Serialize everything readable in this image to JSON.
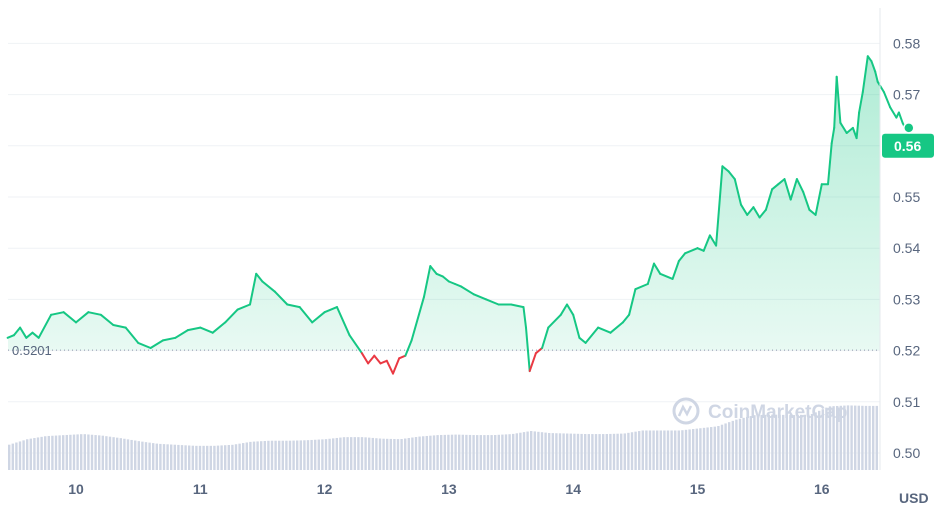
{
  "chart_data": {
    "type": "line",
    "currency": "USD",
    "reference_value": 0.5201,
    "reference_label": "0.5201",
    "current_value": 0.56,
    "current_label": "0.56",
    "ylim": [
      0.497,
      0.587
    ],
    "xlim": [
      9.45,
      16.45
    ],
    "y_ticks": [
      {
        "value": 0.58,
        "label": "0.58"
      },
      {
        "value": 0.57,
        "label": "0.57"
      },
      {
        "value": 0.56,
        "label": "0.56"
      },
      {
        "value": 0.55,
        "label": "0.55"
      },
      {
        "value": 0.54,
        "label": "0.54"
      },
      {
        "value": 0.53,
        "label": "0.53"
      },
      {
        "value": 0.52,
        "label": "0.52"
      },
      {
        "value": 0.51,
        "label": "0.51"
      },
      {
        "value": 0.5,
        "label": "0.50"
      }
    ],
    "x_ticks": [
      {
        "value": 10,
        "label": "10"
      },
      {
        "value": 11,
        "label": "11"
      },
      {
        "value": 12,
        "label": "12"
      },
      {
        "value": 13,
        "label": "13"
      },
      {
        "value": 14,
        "label": "14"
      },
      {
        "value": 15,
        "label": "15"
      },
      {
        "value": 16,
        "label": "16"
      }
    ],
    "price": [
      [
        9.45,
        0.5225
      ],
      [
        9.5,
        0.523
      ],
      [
        9.55,
        0.5245
      ],
      [
        9.6,
        0.5225
      ],
      [
        9.65,
        0.5235
      ],
      [
        9.7,
        0.5225
      ],
      [
        9.8,
        0.527
      ],
      [
        9.9,
        0.5275
      ],
      [
        10.0,
        0.5255
      ],
      [
        10.1,
        0.5275
      ],
      [
        10.2,
        0.527
      ],
      [
        10.3,
        0.525
      ],
      [
        10.4,
        0.5245
      ],
      [
        10.5,
        0.5215
      ],
      [
        10.6,
        0.5205
      ],
      [
        10.7,
        0.522
      ],
      [
        10.8,
        0.5225
      ],
      [
        10.9,
        0.524
      ],
      [
        11.0,
        0.5245
      ],
      [
        11.1,
        0.5235
      ],
      [
        11.2,
        0.5255
      ],
      [
        11.3,
        0.528
      ],
      [
        11.4,
        0.529
      ],
      [
        11.45,
        0.535
      ],
      [
        11.5,
        0.5335
      ],
      [
        11.6,
        0.5315
      ],
      [
        11.7,
        0.529
      ],
      [
        11.8,
        0.5285
      ],
      [
        11.9,
        0.5255
      ],
      [
        12.0,
        0.5275
      ],
      [
        12.1,
        0.5285
      ],
      [
        12.2,
        0.523
      ],
      [
        12.3,
        0.5195
      ],
      [
        12.35,
        0.5175
      ],
      [
        12.4,
        0.519
      ],
      [
        12.45,
        0.5175
      ],
      [
        12.5,
        0.518
      ],
      [
        12.55,
        0.5155
      ],
      [
        12.6,
        0.5185
      ],
      [
        12.65,
        0.519
      ],
      [
        12.7,
        0.522
      ],
      [
        12.8,
        0.5305
      ],
      [
        12.85,
        0.5365
      ],
      [
        12.9,
        0.535
      ],
      [
        12.95,
        0.5345
      ],
      [
        13.0,
        0.5335
      ],
      [
        13.05,
        0.533
      ],
      [
        13.1,
        0.5325
      ],
      [
        13.2,
        0.531
      ],
      [
        13.3,
        0.53
      ],
      [
        13.4,
        0.529
      ],
      [
        13.5,
        0.529
      ],
      [
        13.6,
        0.5285
      ],
      [
        13.62,
        0.5245
      ],
      [
        13.65,
        0.516
      ],
      [
        13.7,
        0.5195
      ],
      [
        13.75,
        0.5205
      ],
      [
        13.8,
        0.5245
      ],
      [
        13.9,
        0.527
      ],
      [
        13.95,
        0.529
      ],
      [
        14.0,
        0.527
      ],
      [
        14.05,
        0.5225
      ],
      [
        14.1,
        0.5215
      ],
      [
        14.2,
        0.5245
      ],
      [
        14.3,
        0.5235
      ],
      [
        14.4,
        0.5255
      ],
      [
        14.45,
        0.527
      ],
      [
        14.5,
        0.532
      ],
      [
        14.6,
        0.533
      ],
      [
        14.65,
        0.537
      ],
      [
        14.7,
        0.535
      ],
      [
        14.8,
        0.534
      ],
      [
        14.85,
        0.5375
      ],
      [
        14.9,
        0.539
      ],
      [
        15.0,
        0.54
      ],
      [
        15.05,
        0.5395
      ],
      [
        15.1,
        0.5425
      ],
      [
        15.15,
        0.5405
      ],
      [
        15.2,
        0.556
      ],
      [
        15.25,
        0.555
      ],
      [
        15.3,
        0.5535
      ],
      [
        15.35,
        0.5485
      ],
      [
        15.4,
        0.5465
      ],
      [
        15.45,
        0.548
      ],
      [
        15.5,
        0.546
      ],
      [
        15.55,
        0.5475
      ],
      [
        15.6,
        0.5515
      ],
      [
        15.65,
        0.5525
      ],
      [
        15.7,
        0.5535
      ],
      [
        15.75,
        0.5495
      ],
      [
        15.8,
        0.5535
      ],
      [
        15.85,
        0.551
      ],
      [
        15.9,
        0.5475
      ],
      [
        15.95,
        0.5465
      ],
      [
        16.0,
        0.5525
      ],
      [
        16.05,
        0.5525
      ],
      [
        16.08,
        0.5605
      ],
      [
        16.1,
        0.5635
      ],
      [
        16.12,
        0.5735
      ],
      [
        16.15,
        0.5645
      ],
      [
        16.2,
        0.5625
      ],
      [
        16.25,
        0.5635
      ],
      [
        16.28,
        0.5615
      ],
      [
        16.3,
        0.5665
      ],
      [
        16.33,
        0.5705
      ],
      [
        16.37,
        0.5775
      ],
      [
        16.4,
        0.5765
      ],
      [
        16.43,
        0.5745
      ],
      [
        16.45,
        0.5725
      ],
      [
        16.5,
        0.5705
      ],
      [
        16.55,
        0.5675
      ],
      [
        16.6,
        0.5655
      ],
      [
        16.62,
        0.5665
      ],
      [
        16.65,
        0.5645
      ],
      [
        16.67,
        0.5635
      ],
      [
        16.7,
        0.5635
      ]
    ],
    "volume": [
      [
        9.45,
        0.5016
      ],
      [
        9.6,
        0.5027
      ],
      [
        9.75,
        0.5033
      ],
      [
        9.9,
        0.5035
      ],
      [
        10.05,
        0.5037
      ],
      [
        10.2,
        0.5034
      ],
      [
        10.35,
        0.5029
      ],
      [
        10.5,
        0.5023
      ],
      [
        10.65,
        0.5018
      ],
      [
        10.8,
        0.5016
      ],
      [
        10.95,
        0.5014
      ],
      [
        11.1,
        0.5014
      ],
      [
        11.25,
        0.5016
      ],
      [
        11.4,
        0.5022
      ],
      [
        11.55,
        0.5024
      ],
      [
        11.7,
        0.5024
      ],
      [
        11.85,
        0.5025
      ],
      [
        12.0,
        0.5027
      ],
      [
        12.15,
        0.5031
      ],
      [
        12.3,
        0.5031
      ],
      [
        12.45,
        0.5028
      ],
      [
        12.6,
        0.5027
      ],
      [
        12.75,
        0.5032
      ],
      [
        12.9,
        0.5035
      ],
      [
        13.05,
        0.5036
      ],
      [
        13.2,
        0.5035
      ],
      [
        13.35,
        0.5035
      ],
      [
        13.5,
        0.5037
      ],
      [
        13.65,
        0.5043
      ],
      [
        13.8,
        0.5039
      ],
      [
        13.95,
        0.5038
      ],
      [
        14.1,
        0.5037
      ],
      [
        14.25,
        0.5037
      ],
      [
        14.4,
        0.5038
      ],
      [
        14.55,
        0.5044
      ],
      [
        14.7,
        0.5044
      ],
      [
        14.85,
        0.5044
      ],
      [
        15.0,
        0.5048
      ],
      [
        15.15,
        0.5052
      ],
      [
        15.3,
        0.5065
      ],
      [
        15.45,
        0.5074
      ],
      [
        15.6,
        0.5075
      ],
      [
        15.75,
        0.5074
      ],
      [
        15.9,
        0.5075
      ],
      [
        16.05,
        0.5091
      ],
      [
        16.2,
        0.5093
      ],
      [
        16.35,
        0.5092
      ],
      [
        16.5,
        0.5092
      ],
      [
        16.7,
        0.5092
      ]
    ]
  },
  "watermark": "CoinMarketCap",
  "colors": {
    "up": "#16c784",
    "down": "#ea3943",
    "volume": "#cfd6e4",
    "grid": "#eff2f5",
    "axis_text": "#58667e"
  }
}
